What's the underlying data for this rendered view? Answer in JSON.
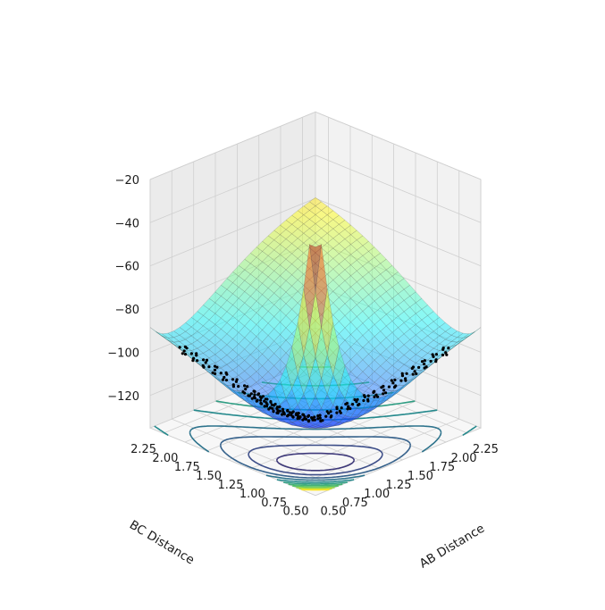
{
  "chart_data": {
    "type": "surface",
    "xlabel": "AB Distance",
    "ylabel": "BC Distance",
    "zlabel": "",
    "x_ticks": [
      "0.50",
      "0.75",
      "1.00",
      "1.25",
      "1.50",
      "1.75",
      "2.00",
      "2.25"
    ],
    "y_ticks": [
      "0.50",
      "0.75",
      "1.00",
      "1.25",
      "1.50",
      "1.75",
      "2.00",
      "2.25"
    ],
    "z_ticks": [
      "-120",
      "-100",
      "-80",
      "-60",
      "-40",
      "-20"
    ],
    "xlim": [
      0.5,
      2.4
    ],
    "ylim": [
      0.5,
      2.4
    ],
    "zlim": [
      -135,
      -20
    ],
    "grid": true,
    "surface_colormap": "jet",
    "surface_alpha": 0.45,
    "contour_colormap": "viridis",
    "contour_levels": [
      -129,
      -127,
      -124,
      -120,
      -115,
      -110,
      -104,
      -98,
      -91,
      -84,
      -77,
      -70,
      -62,
      -55,
      -48
    ],
    "trajectory": {
      "color": "#000000",
      "description_points": [
        {
          "x": 0.74,
          "y": 2.3,
          "z": -100
        },
        {
          "x": 0.75,
          "y": 1.5,
          "z": -108
        },
        {
          "x": 0.78,
          "y": 1.2,
          "z": -112
        },
        {
          "x": 0.95,
          "y": 0.95,
          "z": -115
        },
        {
          "x": 1.5,
          "y": 0.76,
          "z": -108
        },
        {
          "x": 2.3,
          "y": 0.74,
          "z": -100
        }
      ]
    }
  }
}
